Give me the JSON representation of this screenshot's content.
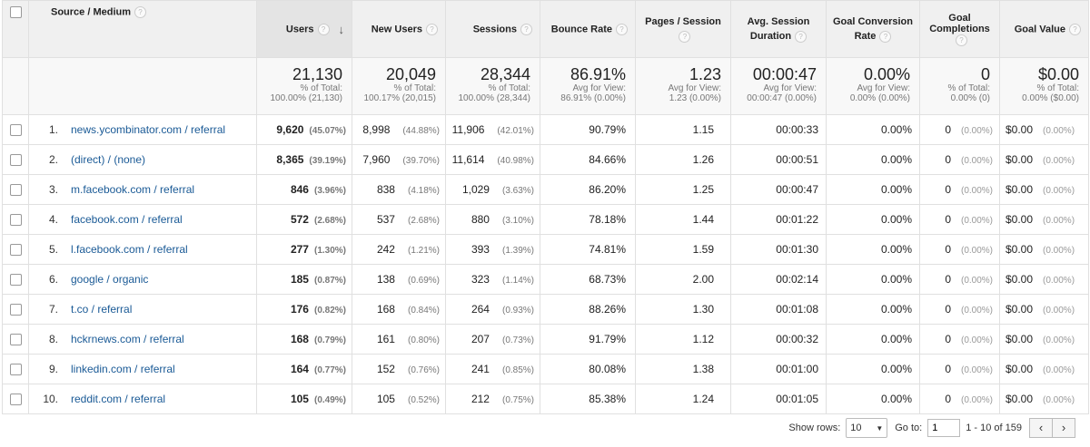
{
  "header": {
    "source_medium": "Source / Medium",
    "users": "Users",
    "new_users": "New Users",
    "sessions": "Sessions",
    "bounce_rate": "Bounce Rate",
    "pages_session": "Pages / Session",
    "avg_session_1": "Avg. Session",
    "avg_session_2": "Duration",
    "goal_conv_1": "Goal Conversion",
    "goal_conv_2": "Rate",
    "goal_comp_1": "Goal",
    "goal_comp_2": "Completions",
    "goal_value": "Goal Value",
    "help_glyph": "?",
    "sort_glyph": "↓"
  },
  "totals": {
    "users": {
      "value": "21,130",
      "l1": "% of Total:",
      "l2": "100.00% (21,130)"
    },
    "new_users": {
      "value": "20,049",
      "l1": "% of Total:",
      "l2": "100.17% (20,015)"
    },
    "sessions": {
      "value": "28,344",
      "l1": "% of Total:",
      "l2": "100.00% (28,344)"
    },
    "bounce_rate": {
      "value": "86.91%",
      "l1": "Avg for View:",
      "l2": "86.91% (0.00%)"
    },
    "pages_session": {
      "value": "1.23",
      "l1": "Avg for View:",
      "l2": "1.23 (0.00%)"
    },
    "avg_duration": {
      "value": "00:00:47",
      "l1": "Avg for View:",
      "l2": "00:00:47 (0.00%)"
    },
    "goal_conv": {
      "value": "0.00%",
      "l1": "Avg for View:",
      "l2": "0.00% (0.00%)"
    },
    "goal_comp": {
      "value": "0",
      "l1": "% of Total:",
      "l2": "0.00% (0)"
    },
    "goal_value": {
      "value": "$0.00",
      "l1": "% of Total:",
      "l2": "0.00% ($0.00)"
    }
  },
  "rows": [
    {
      "idx": "1.",
      "source": "news.ycombinator.com / referral",
      "users": "9,620",
      "users_pct": "(45.07%)",
      "new_users": "8,998",
      "new_users_pct": "(44.88%)",
      "sessions": "11,906",
      "sessions_pct": "(42.01%)",
      "bounce": "90.79%",
      "pages": "1.15",
      "duration": "00:00:33",
      "conv": "0.00%",
      "comp": "0",
      "comp_pct": "(0.00%)",
      "value": "$0.00",
      "value_pct": "(0.00%)"
    },
    {
      "idx": "2.",
      "source": "(direct) / (none)",
      "users": "8,365",
      "users_pct": "(39.19%)",
      "new_users": "7,960",
      "new_users_pct": "(39.70%)",
      "sessions": "11,614",
      "sessions_pct": "(40.98%)",
      "bounce": "84.66%",
      "pages": "1.26",
      "duration": "00:00:51",
      "conv": "0.00%",
      "comp": "0",
      "comp_pct": "(0.00%)",
      "value": "$0.00",
      "value_pct": "(0.00%)"
    },
    {
      "idx": "3.",
      "source": "m.facebook.com / referral",
      "users": "846",
      "users_pct": "(3.96%)",
      "new_users": "838",
      "new_users_pct": "(4.18%)",
      "sessions": "1,029",
      "sessions_pct": "(3.63%)",
      "bounce": "86.20%",
      "pages": "1.25",
      "duration": "00:00:47",
      "conv": "0.00%",
      "comp": "0",
      "comp_pct": "(0.00%)",
      "value": "$0.00",
      "value_pct": "(0.00%)"
    },
    {
      "idx": "4.",
      "source": "facebook.com / referral",
      "users": "572",
      "users_pct": "(2.68%)",
      "new_users": "537",
      "new_users_pct": "(2.68%)",
      "sessions": "880",
      "sessions_pct": "(3.10%)",
      "bounce": "78.18%",
      "pages": "1.44",
      "duration": "00:01:22",
      "conv": "0.00%",
      "comp": "0",
      "comp_pct": "(0.00%)",
      "value": "$0.00",
      "value_pct": "(0.00%)"
    },
    {
      "idx": "5.",
      "source": "l.facebook.com / referral",
      "users": "277",
      "users_pct": "(1.30%)",
      "new_users": "242",
      "new_users_pct": "(1.21%)",
      "sessions": "393",
      "sessions_pct": "(1.39%)",
      "bounce": "74.81%",
      "pages": "1.59",
      "duration": "00:01:30",
      "conv": "0.00%",
      "comp": "0",
      "comp_pct": "(0.00%)",
      "value": "$0.00",
      "value_pct": "(0.00%)"
    },
    {
      "idx": "6.",
      "source": "google / organic",
      "users": "185",
      "users_pct": "(0.87%)",
      "new_users": "138",
      "new_users_pct": "(0.69%)",
      "sessions": "323",
      "sessions_pct": "(1.14%)",
      "bounce": "68.73%",
      "pages": "2.00",
      "duration": "00:02:14",
      "conv": "0.00%",
      "comp": "0",
      "comp_pct": "(0.00%)",
      "value": "$0.00",
      "value_pct": "(0.00%)"
    },
    {
      "idx": "7.",
      "source": "t.co / referral",
      "users": "176",
      "users_pct": "(0.82%)",
      "new_users": "168",
      "new_users_pct": "(0.84%)",
      "sessions": "264",
      "sessions_pct": "(0.93%)",
      "bounce": "88.26%",
      "pages": "1.30",
      "duration": "00:01:08",
      "conv": "0.00%",
      "comp": "0",
      "comp_pct": "(0.00%)",
      "value": "$0.00",
      "value_pct": "(0.00%)"
    },
    {
      "idx": "8.",
      "source": "hckrnews.com / referral",
      "users": "168",
      "users_pct": "(0.79%)",
      "new_users": "161",
      "new_users_pct": "(0.80%)",
      "sessions": "207",
      "sessions_pct": "(0.73%)",
      "bounce": "91.79%",
      "pages": "1.12",
      "duration": "00:00:32",
      "conv": "0.00%",
      "comp": "0",
      "comp_pct": "(0.00%)",
      "value": "$0.00",
      "value_pct": "(0.00%)"
    },
    {
      "idx": "9.",
      "source": "linkedin.com / referral",
      "users": "164",
      "users_pct": "(0.77%)",
      "new_users": "152",
      "new_users_pct": "(0.76%)",
      "sessions": "241",
      "sessions_pct": "(0.85%)",
      "bounce": "80.08%",
      "pages": "1.38",
      "duration": "00:01:00",
      "conv": "0.00%",
      "comp": "0",
      "comp_pct": "(0.00%)",
      "value": "$0.00",
      "value_pct": "(0.00%)"
    },
    {
      "idx": "10.",
      "source": "reddit.com / referral",
      "users": "105",
      "users_pct": "(0.49%)",
      "new_users": "105",
      "new_users_pct": "(0.52%)",
      "sessions": "212",
      "sessions_pct": "(0.75%)",
      "bounce": "85.38%",
      "pages": "1.24",
      "duration": "00:01:05",
      "conv": "0.00%",
      "comp": "0",
      "comp_pct": "(0.00%)",
      "value": "$0.00",
      "value_pct": "(0.00%)"
    }
  ],
  "pager": {
    "show_rows_label": "Show rows:",
    "show_rows_value": "10",
    "goto_label": "Go to:",
    "goto_value": "1",
    "range": "1 - 10 of 159",
    "prev": "‹",
    "next": "›",
    "dropdown_glyph": "▼"
  },
  "colors": {
    "link": "#1a5a96",
    "header_bg": "#f0f0f0",
    "sorted_bg": "#e4e4e4"
  }
}
